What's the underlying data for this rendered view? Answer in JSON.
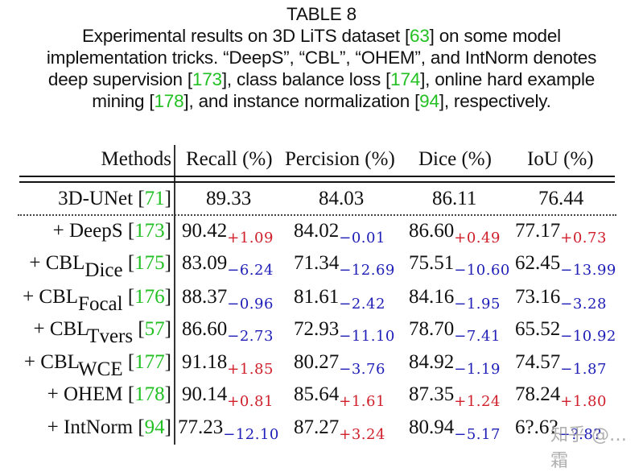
{
  "caption": {
    "title": "TABLE 8",
    "line1_a": "Experimental results on 3D LiTS dataset [",
    "line1_cite": "63",
    "line1_b": "] on some model",
    "line2": "implementation tricks. “DeepS”, “CBL”, “OHEM”, and IntNorm denotes",
    "line3_a": "deep supervision [",
    "line3_cite1": "173",
    "line3_b": "], class balance loss [",
    "line3_cite2": "174",
    "line3_c": "], online hard example",
    "line4_a": "mining [",
    "line4_cite1": "178",
    "line4_b": "], and instance normalization [",
    "line4_cite2": "94",
    "line4_c": "], respectively."
  },
  "table": {
    "headers": [
      "Methods",
      "Recall (%)",
      "Percision (%)",
      "Dice (%)",
      "IoU (%)"
    ],
    "baseline": {
      "method": "3D-UNet [",
      "cite": "71",
      "close": "]",
      "values": [
        "89.33",
        "84.03",
        "86.11",
        "76.44"
      ]
    },
    "rows": [
      {
        "prefix": "+ DeepS",
        "sub": "",
        "cite": "173",
        "values": [
          [
            "90.42",
            "+1.09",
            "pos"
          ],
          [
            "84.02",
            "−0.01",
            "neg"
          ],
          [
            "86.60",
            "+0.49",
            "pos"
          ],
          [
            "77.17",
            "+0.73",
            "pos"
          ]
        ]
      },
      {
        "prefix": "+ CBL",
        "sub": "Dice",
        "cite": "175",
        "values": [
          [
            "83.09",
            "−6.24",
            "neg"
          ],
          [
            "71.34",
            "−12.69",
            "neg"
          ],
          [
            "75.51",
            "−10.60",
            "neg"
          ],
          [
            "62.45",
            "−13.99",
            "neg"
          ]
        ]
      },
      {
        "prefix": "+ CBL",
        "sub": "Focal",
        "cite": "176",
        "values": [
          [
            "88.37",
            "−0.96",
            "neg"
          ],
          [
            "81.61",
            "−2.42",
            "neg"
          ],
          [
            "84.16",
            "−1.95",
            "neg"
          ],
          [
            "73.16",
            "−3.28",
            "neg"
          ]
        ]
      },
      {
        "prefix": "+ CBL",
        "sub": "Tvers",
        "cite": "57",
        "values": [
          [
            "86.60",
            "−2.73",
            "neg"
          ],
          [
            "72.93",
            "−11.10",
            "neg"
          ],
          [
            "78.70",
            "−7.41",
            "neg"
          ],
          [
            "65.52",
            "−10.92",
            "neg"
          ]
        ]
      },
      {
        "prefix": "+ CBL",
        "sub": "WCE",
        "cite": "177",
        "values": [
          [
            "91.18",
            "+1.85",
            "pos"
          ],
          [
            "80.27",
            "−3.76",
            "neg"
          ],
          [
            "84.92",
            "−1.19",
            "neg"
          ],
          [
            "74.57",
            "−1.87",
            "neg"
          ]
        ]
      },
      {
        "prefix": "+ OHEM",
        "sub": "",
        "cite": "178",
        "values": [
          [
            "90.14",
            "+0.81",
            "pos"
          ],
          [
            "85.64",
            "+1.61",
            "pos"
          ],
          [
            "87.35",
            "+1.24",
            "pos"
          ],
          [
            "78.24",
            "+1.80",
            "pos"
          ]
        ]
      },
      {
        "prefix": "+ IntNorm",
        "sub": "",
        "cite": "94",
        "values": [
          [
            "77.23",
            "−12.10",
            "neg"
          ],
          [
            "87.27",
            "+3.24",
            "pos"
          ],
          [
            "80.94",
            "−5.17",
            "neg"
          ],
          [
            "6?.6?",
            "−?.8?",
            "neg"
          ]
        ]
      }
    ],
    "colors": {
      "citation": "#22c022",
      "positive_delta": "#d0202c",
      "negative_delta": "#2020b8"
    }
  },
  "watermark": "知乎 @…霜"
}
